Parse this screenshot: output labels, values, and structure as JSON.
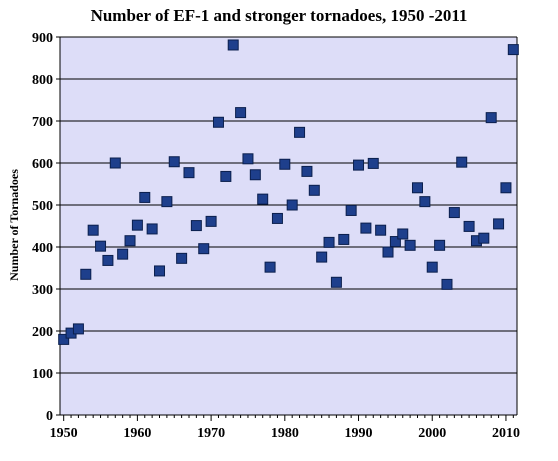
{
  "chart_data": {
    "type": "scatter",
    "title": "Number of EF-1 and stronger tornadoes, 1950 -2011",
    "xlabel": "",
    "ylabel": "Number of Tornadoes",
    "xlim": [
      1949.5,
      2011.5
    ],
    "ylim": [
      0,
      900
    ],
    "x_ticks": [
      "1950",
      "1960",
      "1970",
      "1980",
      "1990",
      "2000",
      "2010"
    ],
    "y_ticks": [
      "0",
      "100",
      "200",
      "300",
      "400",
      "500",
      "600",
      "700",
      "800",
      "900"
    ],
    "grid": "horizontal",
    "legend": "none",
    "colors": {
      "plot_background": "#ddddf8",
      "marker_fill": "#1e3f8c",
      "marker_edge": "#0b1f4d",
      "gridline": "#000000"
    },
    "series": [
      {
        "marker": "square",
        "points": [
          [
            1950,
            180
          ],
          [
            1951,
            195
          ],
          [
            1952,
            205
          ],
          [
            1953,
            335
          ],
          [
            1954,
            440
          ],
          [
            1955,
            402
          ],
          [
            1956,
            368
          ],
          [
            1957,
            600
          ],
          [
            1958,
            383
          ],
          [
            1959,
            415
          ],
          [
            1960,
            452
          ],
          [
            1961,
            518
          ],
          [
            1962,
            443
          ],
          [
            1963,
            343
          ],
          [
            1964,
            508
          ],
          [
            1965,
            603
          ],
          [
            1966,
            373
          ],
          [
            1967,
            577
          ],
          [
            1968,
            451
          ],
          [
            1969,
            396
          ],
          [
            1970,
            461
          ],
          [
            1971,
            697
          ],
          [
            1972,
            568
          ],
          [
            1973,
            881
          ],
          [
            1974,
            720
          ],
          [
            1975,
            610
          ],
          [
            1976,
            572
          ],
          [
            1977,
            514
          ],
          [
            1978,
            352
          ],
          [
            1979,
            468
          ],
          [
            1980,
            597
          ],
          [
            1981,
            500
          ],
          [
            1982,
            673
          ],
          [
            1983,
            580
          ],
          [
            1984,
            535
          ],
          [
            1985,
            376
          ],
          [
            1986,
            411
          ],
          [
            1987,
            316
          ],
          [
            1988,
            418
          ],
          [
            1989,
            487
          ],
          [
            1990,
            595
          ],
          [
            1991,
            445
          ],
          [
            1992,
            599
          ],
          [
            1993,
            440
          ],
          [
            1994,
            388
          ],
          [
            1995,
            413
          ],
          [
            1996,
            431
          ],
          [
            1997,
            404
          ],
          [
            1998,
            541
          ],
          [
            1999,
            508
          ],
          [
            2000,
            352
          ],
          [
            2001,
            404
          ],
          [
            2002,
            311
          ],
          [
            2003,
            482
          ],
          [
            2004,
            602
          ],
          [
            2005,
            449
          ],
          [
            2006,
            415
          ],
          [
            2007,
            421
          ],
          [
            2008,
            708
          ],
          [
            2009,
            455
          ],
          [
            2010,
            541
          ],
          [
            2011,
            870
          ]
        ]
      }
    ]
  }
}
